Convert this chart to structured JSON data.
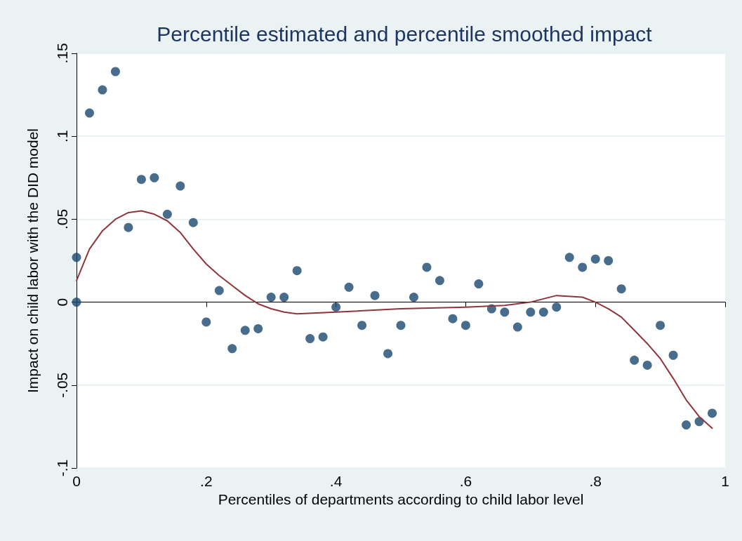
{
  "chart_data": {
    "type": "scatter",
    "title": "Percentile estimated and percentile smoothed impact",
    "xlabel": "Percentiles of departments according to child labor level",
    "ylabel": "Impact on child labor with the DID model",
    "series": [
      {
        "color": "#1a476f",
        "marker": "circle",
        "x": [
          0,
          0,
          0.02,
          0.04,
          0.06,
          0.08,
          0.1,
          0.12,
          0.14,
          0.16,
          0.18,
          0.2,
          0.22,
          0.24,
          0.26,
          0.28,
          0.3,
          0.32,
          0.34,
          0.36,
          0.38,
          0.4,
          0.42,
          0.44,
          0.46,
          0.48,
          0.5,
          0.52,
          0.54,
          0.56,
          0.58,
          0.6,
          0.62,
          0.64,
          0.66,
          0.68,
          0.7,
          0.72,
          0.74,
          0.76,
          0.78,
          0.8,
          0.82,
          0.84,
          0.86,
          0.88,
          0.9,
          0.92,
          0.94,
          0.96,
          0.98
        ],
        "values": [
          0,
          0.027,
          0.114,
          0.128,
          0.139,
          0.045,
          0.074,
          0.075,
          0.053,
          0.07,
          0.048,
          -0.012,
          0.007,
          -0.028,
          -0.017,
          -0.016,
          0.003,
          0.003,
          0.019,
          -0.022,
          -0.021,
          -0.003,
          0.009,
          -0.014,
          0.004,
          -0.031,
          -0.014,
          0.003,
          0.021,
          0.013,
          -0.01,
          -0.014,
          0.011,
          -0.004,
          -0.006,
          -0.015,
          -0.006,
          -0.006,
          -0.003,
          0.027,
          0.021,
          0.026,
          0.025,
          0.008,
          -0.035,
          -0.038,
          -0.014,
          -0.032,
          -0.074,
          -0.072,
          -0.067
        ]
      },
      {
        "type": "line",
        "color": "#90353b",
        "marker": "none",
        "line_style": "solid",
        "x": [
          0,
          0.02,
          0.04,
          0.06,
          0.08,
          0.1,
          0.12,
          0.14,
          0.16,
          0.18,
          0.2,
          0.22,
          0.24,
          0.26,
          0.28,
          0.3,
          0.32,
          0.34,
          0.4,
          0.5,
          0.6,
          0.66,
          0.7,
          0.74,
          0.78,
          0.8,
          0.82,
          0.84,
          0.86,
          0.88,
          0.9,
          0.92,
          0.94,
          0.96,
          0.98
        ],
        "values": [
          0.013,
          0.032,
          0.043,
          0.05,
          0.054,
          0.055,
          0.053,
          0.049,
          0.042,
          0.032,
          0.023,
          0.016,
          0.01,
          0.004,
          -0.001,
          -0.004,
          -0.006,
          -0.007,
          -0.006,
          -0.004,
          -0.003,
          -0.002,
          0.0,
          0.004,
          0.003,
          0.0,
          -0.004,
          -0.009,
          -0.017,
          -0.025,
          -0.034,
          -0.046,
          -0.059,
          -0.069,
          -0.076
        ]
      }
    ],
    "xlim": [
      0,
      1
    ],
    "xticks": [
      0,
      {
        "value": 0.2,
        "label": ".2"
      },
      {
        "value": 0.4,
        "label": ".4"
      },
      {
        "value": 0.6,
        "label": ".6"
      },
      {
        "value": 0.8,
        "label": ".8"
      },
      1
    ],
    "ylim": [
      -0.1,
      0.15
    ],
    "yticks": [
      {
        "value": -0.1,
        "label": "-.1"
      },
      {
        "value": -0.05,
        "label": "-.05"
      },
      0,
      {
        "value": 0.05,
        "label": ".05"
      },
      {
        "value": 0.1,
        "label": ".1"
      },
      {
        "value": 0.15,
        "label": ".15"
      }
    ],
    "grid": "y"
  }
}
